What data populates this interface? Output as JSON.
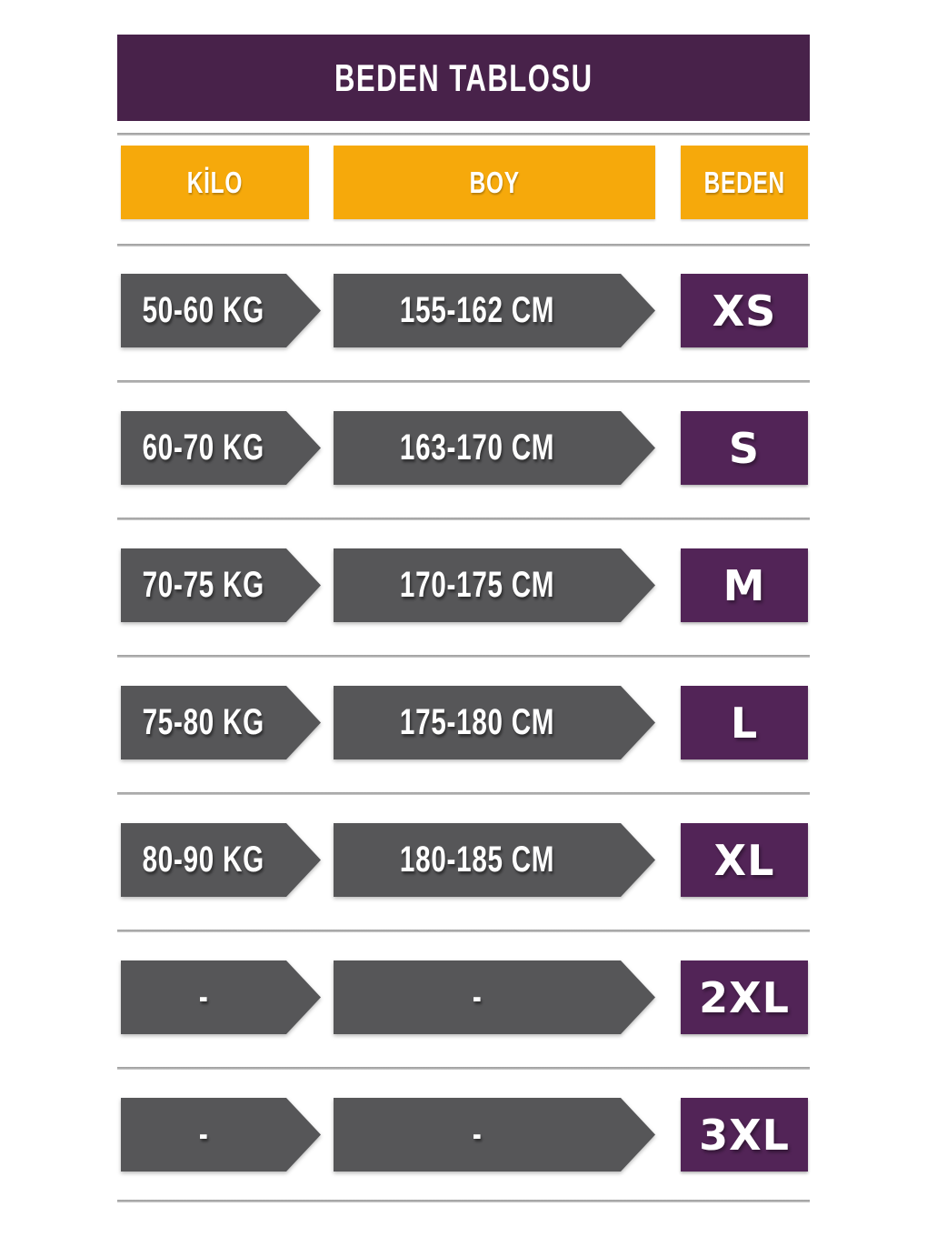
{
  "chart_data": {
    "type": "table",
    "title": "BEDEN TABLOSU",
    "columns": [
      "KİLO",
      "BOY",
      "BEDEN"
    ],
    "rows": [
      [
        "50-60 KG",
        "155-162 CM",
        "XS"
      ],
      [
        "60-70 KG",
        "163-170 CM",
        "S"
      ],
      [
        "70-75 KG",
        "170-175 CM",
        "M"
      ],
      [
        "75-80 KG",
        "175-180 CM",
        "L"
      ],
      [
        "80-90 KG",
        "180-185 CM",
        "XL"
      ],
      [
        "-",
        "-",
        "2XL"
      ],
      [
        "-",
        "-",
        "3XL"
      ]
    ]
  },
  "colors": {
    "title_bar_purple": "#48224A",
    "size_badge_purple": "#522457",
    "header_yellow": "#F6A90B",
    "arrow_gray": "#565658",
    "divider_gray": "#ACACAC",
    "text_white": "#FFFFFF",
    "background": "#FFFFFF"
  }
}
